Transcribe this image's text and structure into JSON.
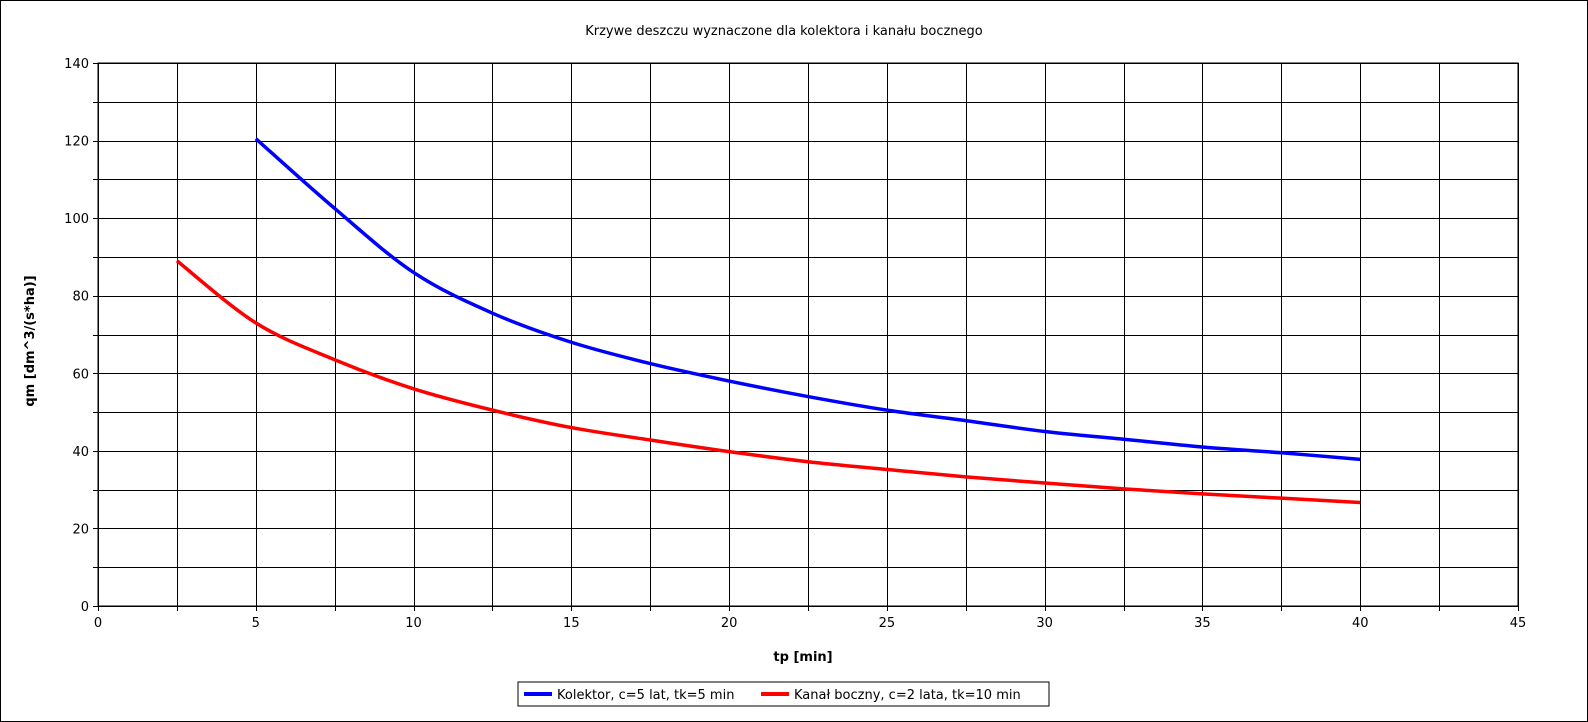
{
  "chart_data": {
    "type": "line",
    "title": "Krzywe deszczu wyznaczone dla kolektora i kanału bocznego",
    "xlabel": "tp [min]",
    "ylabel": "qm [dm^3/(s*ha)]",
    "xlim": [
      0,
      45
    ],
    "ylim": [
      0,
      140
    ],
    "x_ticks": [
      0,
      5,
      10,
      15,
      20,
      25,
      30,
      35,
      40,
      45
    ],
    "y_ticks": [
      0,
      20,
      40,
      60,
      80,
      100,
      120,
      140
    ],
    "grid": true,
    "legend_position": "bottom",
    "series": [
      {
        "name": "Kolektor, c=5 lat, tk=5 min",
        "color": "#0000ff",
        "x": [
          5,
          7.5,
          10,
          12.5,
          15,
          17.5,
          20,
          22.5,
          25,
          27.5,
          30,
          32.5,
          35,
          37.5,
          40
        ],
        "y": [
          120.5,
          102.5,
          86.0,
          75.5,
          68.0,
          62.5,
          58.0,
          54.0,
          50.5,
          47.8,
          45.0,
          43.0,
          41.0,
          39.5,
          37.8
        ]
      },
      {
        "name": "Kanał boczny, c=2 lata, tk=10 min",
        "color": "#ff0000",
        "x": [
          2.5,
          5,
          7.5,
          10,
          12.5,
          15,
          17.5,
          20,
          22.5,
          25,
          27.5,
          30,
          32.5,
          35,
          37.5,
          40
        ],
        "y": [
          89.0,
          73.0,
          63.5,
          56.0,
          50.5,
          46.0,
          42.8,
          39.8,
          37.2,
          35.2,
          33.3,
          31.7,
          30.2,
          28.9,
          27.8,
          26.7
        ]
      }
    ]
  }
}
